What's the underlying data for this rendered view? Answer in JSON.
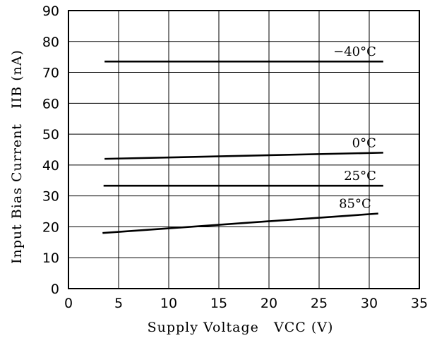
{
  "chart_data": {
    "type": "line",
    "xlabel": "Supply Voltage   VCC (V)",
    "ylabel": "Input Bias Current   IIB (nA)",
    "xlim": [
      0,
      35
    ],
    "ylim": [
      0,
      90
    ],
    "x_ticks": [
      "0",
      "5",
      "10",
      "15",
      "20",
      "25",
      "30",
      "35"
    ],
    "y_ticks": [
      "0",
      "10",
      "20",
      "30",
      "40",
      "50",
      "60",
      "70",
      "80",
      "90"
    ],
    "grid": true,
    "series": [
      {
        "name": "−40°C",
        "x": [
          3.6,
          31.4
        ],
        "y": [
          73.5,
          73.5
        ]
      },
      {
        "name": "0°C",
        "x": [
          3.6,
          31.4
        ],
        "y": [
          42.0,
          44.0
        ]
      },
      {
        "name": "25°C",
        "x": [
          3.5,
          31.4
        ],
        "y": [
          33.3,
          33.3
        ]
      },
      {
        "name": "85°C",
        "x": [
          3.4,
          30.9
        ],
        "y": [
          18.0,
          24.3
        ]
      }
    ]
  }
}
